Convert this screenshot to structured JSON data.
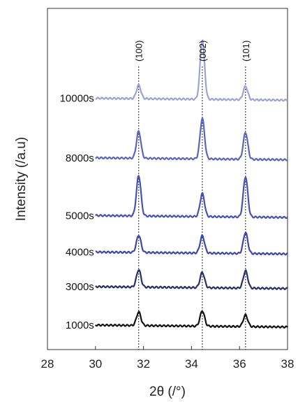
{
  "chart_data": {
    "type": "line",
    "xlabel": "2θ (/°)",
    "ylabel": "Intensity (/a.u)",
    "xlim": [
      28,
      38
    ],
    "x_ticks": [
      "28",
      "30",
      "32",
      "34",
      "36",
      "38"
    ],
    "y_ticks_shown": false,
    "grid": false,
    "reference_lines": [
      {
        "label": "(100)",
        "x": 31.8
      },
      {
        "label": "(002)",
        "x": 34.45
      },
      {
        "label": "(101)",
        "x": 36.25
      }
    ],
    "series": [
      {
        "name": "10000s",
        "color": "#9aa3d6",
        "offset": 5.9,
        "peaks": [
          0.35,
          1.55,
          0.35
        ]
      },
      {
        "name": "8000s",
        "color": "#5865c3",
        "offset": 4.35,
        "peaks": [
          0.7,
          1.05,
          0.7
        ]
      },
      {
        "name": "5000s",
        "color": "#4452b8",
        "offset": 2.85,
        "peaks": [
          1.05,
          0.6,
          1.05
        ]
      },
      {
        "name": "4000s",
        "color": "#3a47ad",
        "offset": 1.9,
        "peaks": [
          0.45,
          0.45,
          0.55
        ]
      },
      {
        "name": "3000s",
        "color": "#262e6e",
        "offset": 1.0,
        "peaks": [
          0.45,
          0.4,
          0.45
        ]
      },
      {
        "name": "1000s",
        "color": "#111111",
        "offset": 0.0,
        "peaks": [
          0.35,
          0.4,
          0.3
        ]
      }
    ],
    "peak_positions": [
      31.8,
      34.45,
      36.25
    ],
    "series_labels": [
      "10000s",
      "8000s",
      "5000s",
      "4000s",
      "3000s",
      "1000s"
    ]
  }
}
